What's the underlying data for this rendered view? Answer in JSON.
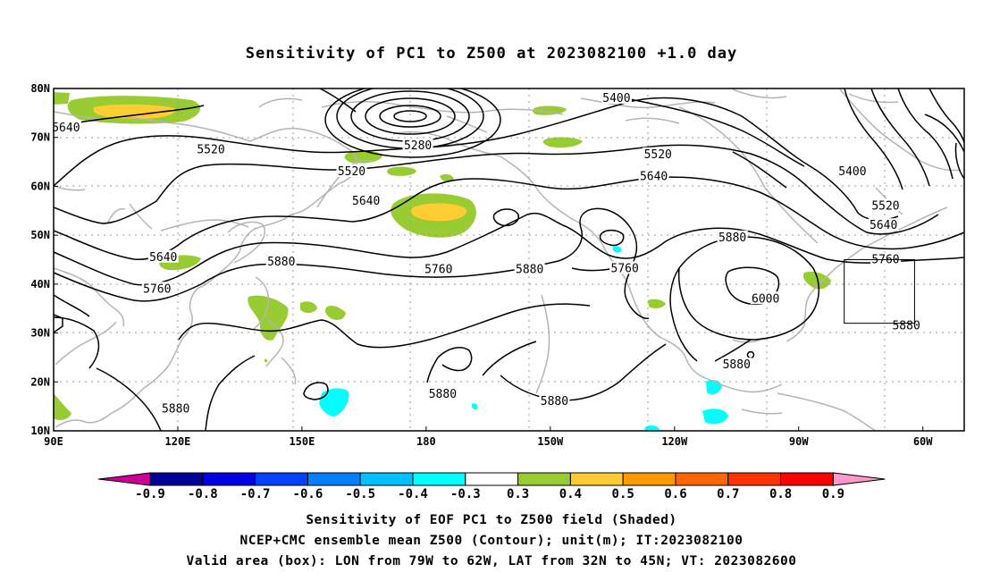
{
  "title": "Sensitivity of PC1 to Z500 at 2023082100 +1.0 day",
  "map": {
    "lon_range": [
      90,
      310
    ],
    "lat_range": [
      10,
      80
    ],
    "lat_ticks": [
      {
        "lat": 80,
        "label": "80N"
      },
      {
        "lat": 70,
        "label": "70N"
      },
      {
        "lat": 60,
        "label": "60N"
      },
      {
        "lat": 50,
        "label": "50N"
      },
      {
        "lat": 40,
        "label": "40N"
      },
      {
        "lat": 30,
        "label": "30N"
      },
      {
        "lat": 20,
        "label": "20N"
      },
      {
        "lat": 10,
        "label": "10N"
      }
    ],
    "lon_ticks": [
      {
        "lon": 90,
        "label": "90E"
      },
      {
        "lon": 120,
        "label": "120E"
      },
      {
        "lon": 150,
        "label": "150E"
      },
      {
        "lon": 180,
        "label": "180"
      },
      {
        "lon": 210,
        "label": "150W"
      },
      {
        "lon": 240,
        "label": "120W"
      },
      {
        "lon": 270,
        "label": "90W"
      },
      {
        "lon": 300,
        "label": "60W"
      }
    ],
    "grid": "dotted",
    "coastline_color": "#b4b4b4",
    "contour_color": "#000000",
    "contour_labels": [
      {
        "text": "5640",
        "lon": 93,
        "lat": 72
      },
      {
        "text": "5520",
        "lon": 128,
        "lat": 67.5
      },
      {
        "text": "5520",
        "lon": 162,
        "lat": 63
      },
      {
        "text": "5280",
        "lon": 178,
        "lat": 68.3
      },
      {
        "text": "5400",
        "lon": 226,
        "lon_note": "",
        "lat": 78
      },
      {
        "text": "5520",
        "lon": 236,
        "lat": 66.5
      },
      {
        "text": "5640",
        "lon": 235,
        "lat": 62
      },
      {
        "text": "5400",
        "lon": 283,
        "lat": 63
      },
      {
        "text": "5640",
        "lon": 165.5,
        "lat": 57
      },
      {
        "text": "5520",
        "lon": 291,
        "lat": 56
      },
      {
        "text": "5640",
        "lon": 290.5,
        "lat": 52
      },
      {
        "text": "5880",
        "lon": 254,
        "lat": 49.5
      },
      {
        "text": "5760",
        "lon": 291,
        "lat": 45
      },
      {
        "text": "5640",
        "lon": 116.5,
        "lat": 45.5
      },
      {
        "text": "5880",
        "lon": 145,
        "lat": 44.5
      },
      {
        "text": "5760",
        "lon": 183,
        "lat": 43
      },
      {
        "text": "5880",
        "lon": 205,
        "lat": 43
      },
      {
        "text": "5760",
        "lon": 228,
        "lat": 43.2
      },
      {
        "text": "5760",
        "lon": 115,
        "lat": 39
      },
      {
        "text": "6000",
        "lon": 262,
        "lat": 37
      },
      {
        "text": "5880",
        "lon": 296,
        "lat": 31.5
      },
      {
        "text": "5880",
        "lon": 255,
        "lat": 23.5
      },
      {
        "text": "5880",
        "lon": 184,
        "lat": 17.5
      },
      {
        "text": "5880",
        "lon": 211,
        "lat": 16
      },
      {
        "text": "5880",
        "lon": 119.5,
        "lat": 14.5
      }
    ],
    "valid_box": {
      "lon_min": 281,
      "lon_max": 298,
      "lat_min": 32,
      "lat_max": 45
    }
  },
  "colorbar": {
    "ticks": [
      "-0.9",
      "-0.8",
      "-0.7",
      "-0.6",
      "-0.5",
      "-0.4",
      "-0.3",
      "0.3",
      "0.4",
      "0.5",
      "0.6",
      "0.7",
      "0.8",
      "0.9"
    ],
    "colors": [
      "#000099",
      "#0000e6",
      "#0040ff",
      "#0080ff",
      "#00bfff",
      "#00ffff",
      "#ffffff",
      "#99cc33",
      "#ffcc33",
      "#ff9900",
      "#ff6600",
      "#ff3300",
      "#ff0000"
    ],
    "low_extend_color": "#cc0099",
    "high_extend_color": "#ff99cc"
  },
  "captions": {
    "line1": "Sensitivity of EOF PC1 to Z500 field (Shaded)",
    "line2": "NCEP+CMC ensemble mean Z500 (Contour); unit(m); IT:2023082100",
    "line3": "Valid area (box): LON from 79W to 62W, LAT from 32N to 45N; VT: 2023082600"
  }
}
